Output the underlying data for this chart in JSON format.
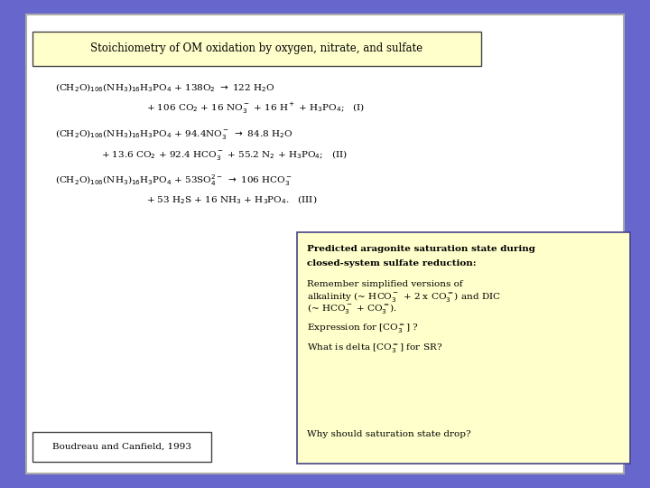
{
  "bg_outer": "#6666cc",
  "bg_inner": "#ffffff",
  "bg_title_box": "#ffffcc",
  "bg_right_box": "#ffffcc",
  "bg_ref_box": "#ffffff",
  "title_text": "Stoichiometry of OM oxidation by oxygen, nitrate, and sulfate",
  "eq1_line1": "(CH$_2$O)$_{106}$(NH$_3$)$_{16}$H$_3$PO$_4$ + 138O$_2$ $\\rightarrow$ 122 H$_2$O",
  "eq1_line2": "+ 106 CO$_2$ + 16 NO$_3^-$ + 16 H$^+$ + H$_3$PO$_4$;   (I)",
  "eq2_line1": "(CH$_2$O)$_{106}$(NH$_3$)$_{16}$H$_3$PO$_4$ + 94.4NO$_3^-$ $\\rightarrow$ 84.8 H$_2$O",
  "eq2_line2": "+ 13.6 CO$_2$ + 92.4 HCO$_3^-$ + 55.2 N$_2$ + H$_3$PO$_4$;   (II)",
  "eq3_line1": "(CH$_2$O)$_{106}$(NH$_3$)$_{16}$H$_3$PO$_4$ + 53SO$_4^{2-}$ $\\rightarrow$ 106 HCO$_3^-$",
  "eq3_line2": "+ 53 H$_2$S + 16 NH$_3$ + H$_3$PO$_4$.   (III)",
  "right_box_line1": "Predicted aragonite saturation state during",
  "right_box_line2": "closed-system sulfate reduction:",
  "right_box_line3": "Remember simplified versions of",
  "right_box_line4": "alkalinity (~ HCO$_3^-$ + 2 x CO$_3^=$) and DIC",
  "right_box_line5": "(~ HCO$_3^-$ + CO$_3^=$).",
  "right_box_line6": "Expression for [CO$_3^=$] ?",
  "right_box_line7": "What is delta [CO$_3^=$] for SR?",
  "right_box_line8": "Why should saturation state drop?",
  "ref_text": "Boudreau and Canfield, 1993",
  "eq_fontsize": 7.5,
  "title_fontsize": 8.5,
  "rbox_fontsize": 7.5
}
